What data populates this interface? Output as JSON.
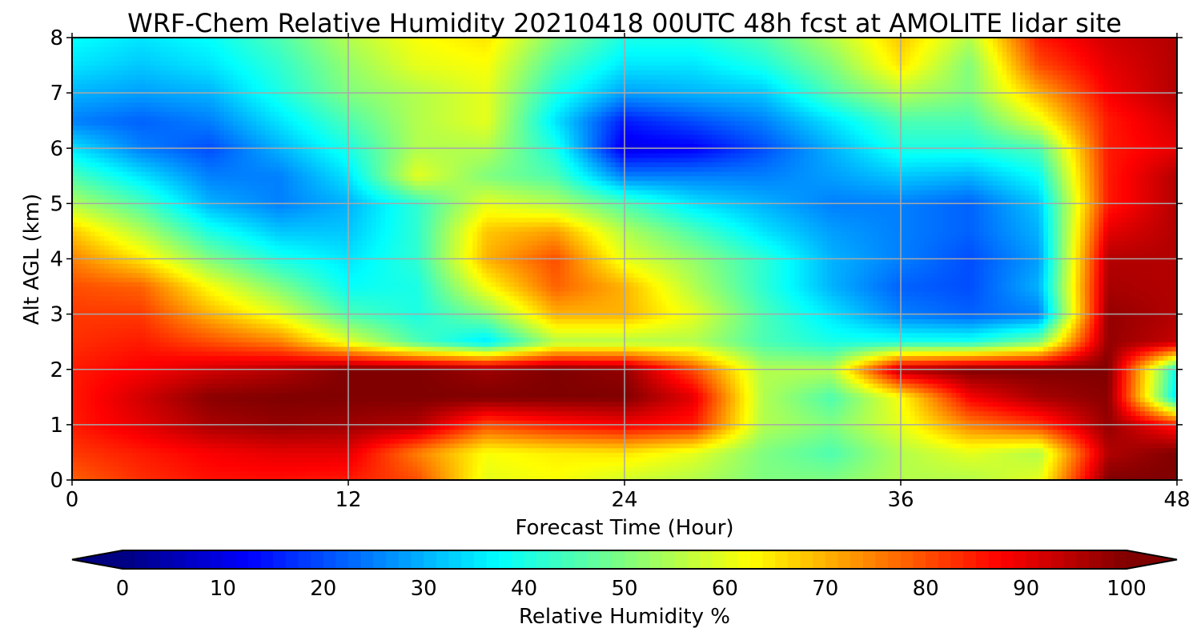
{
  "chart_data": {
    "type": "heatmap",
    "title": "WRF-Chem Relative Humidity 20210418 00UTC 48h fcst at AMOLITE lidar site",
    "xlabel": "Forecast Time (Hour)",
    "ylabel": "Alt AGL (km)",
    "xlim": [
      0,
      48
    ],
    "ylim": [
      0,
      8
    ],
    "xticks": [
      0,
      12,
      24,
      36,
      48
    ],
    "yticks": [
      0,
      1,
      2,
      3,
      4,
      5,
      6,
      7,
      8
    ],
    "grid": true,
    "colorbar": {
      "label": "Relative Humidity %",
      "ticks": [
        0,
        10,
        20,
        30,
        40,
        50,
        60,
        70,
        80,
        90,
        100
      ],
      "range": [
        0,
        100
      ],
      "extend": "both",
      "colormap": "jet",
      "placement": "bottom"
    },
    "x": [
      0,
      3,
      6,
      9,
      12,
      15,
      18,
      21,
      24,
      27,
      30,
      33,
      36,
      39,
      42,
      45,
      48
    ],
    "y": [
      0,
      0.5,
      1,
      1.5,
      2,
      2.5,
      3,
      3.5,
      4,
      4.5,
      5,
      5.5,
      6,
      6.5,
      7,
      7.5,
      8
    ],
    "z": [
      [
        78,
        83,
        86,
        86,
        85,
        80,
        60,
        62,
        58,
        55,
        50,
        50,
        55,
        55,
        60,
        100,
        100
      ],
      [
        82,
        85,
        88,
        90,
        90,
        75,
        62,
        64,
        65,
        60,
        50,
        45,
        55,
        60,
        55,
        95,
        100
      ],
      [
        85,
        90,
        96,
        98,
        97,
        95,
        80,
        85,
        88,
        85,
        55,
        50,
        60,
        75,
        82,
        98,
        85
      ],
      [
        85,
        92,
        99,
        100,
        100,
        100,
        100,
        100,
        100,
        90,
        55,
        45,
        62,
        88,
        96,
        99,
        35
      ],
      [
        85,
        88,
        92,
        95,
        100,
        100,
        97,
        100,
        98,
        80,
        55,
        55,
        95,
        100,
        100,
        100,
        38
      ],
      [
        83,
        85,
        80,
        75,
        60,
        45,
        35,
        55,
        55,
        55,
        45,
        40,
        40,
        40,
        50,
        98,
        93
      ],
      [
        82,
        82,
        70,
        60,
        45,
        40,
        50,
        70,
        70,
        60,
        45,
        35,
        25,
        22,
        25,
        98,
        95
      ],
      [
        80,
        78,
        62,
        50,
        38,
        40,
        62,
        78,
        70,
        55,
        42,
        30,
        22,
        20,
        30,
        96,
        95
      ],
      [
        75,
        65,
        50,
        40,
        35,
        42,
        70,
        80,
        60,
        52,
        42,
        30,
        25,
        20,
        28,
        95,
        95
      ],
      [
        68,
        55,
        40,
        32,
        32,
        42,
        68,
        72,
        55,
        45,
        35,
        28,
        25,
        22,
        30,
        90,
        95
      ],
      [
        55,
        45,
        30,
        25,
        30,
        42,
        60,
        55,
        45,
        35,
        30,
        25,
        25,
        22,
        32,
        85,
        95
      ],
      [
        45,
        35,
        25,
        25,
        35,
        60,
        50,
        45,
        25,
        25,
        25,
        28,
        32,
        30,
        38,
        85,
        95
      ],
      [
        35,
        25,
        20,
        30,
        40,
        55,
        55,
        40,
        10,
        12,
        20,
        30,
        40,
        40,
        45,
        85,
        90
      ],
      [
        25,
        22,
        25,
        35,
        45,
        55,
        60,
        35,
        15,
        20,
        25,
        35,
        45,
        45,
        60,
        85,
        92
      ],
      [
        30,
        28,
        30,
        40,
        50,
        55,
        60,
        40,
        28,
        30,
        32,
        45,
        55,
        50,
        70,
        88,
        95
      ],
      [
        35,
        32,
        35,
        42,
        52,
        60,
        62,
        45,
        35,
        35,
        40,
        50,
        65,
        50,
        80,
        90,
        95
      ],
      [
        38,
        35,
        38,
        45,
        55,
        62,
        65,
        50,
        40,
        40,
        45,
        55,
        68,
        55,
        85,
        92,
        95
      ]
    ]
  }
}
